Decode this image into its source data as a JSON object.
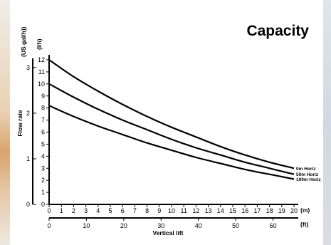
{
  "chart_data": {
    "type": "line",
    "title": "Capacity",
    "xlabel": "Vertical lift",
    "x_unit_primary": "(m)",
    "x_unit_secondary": "(ft)",
    "ylabel": "Flow rate",
    "y_unit_primary": "(l/h)",
    "y_unit_secondary": "(US gal/h))",
    "xlim_m": [
      0,
      20
    ],
    "ylim_lh": [
      0,
      12
    ],
    "x_ticks_m": [
      "0",
      "1",
      "2",
      "3",
      "4",
      "5",
      "6",
      "7",
      "8",
      "9",
      "10",
      "11",
      "12",
      "13",
      "14",
      "15",
      "16",
      "17",
      "18",
      "19",
      "20"
    ],
    "x_ticks_ft": [
      "0",
      "10",
      "20",
      "30",
      "40",
      "50",
      "60"
    ],
    "y_ticks_lh": [
      "0",
      "1",
      "2",
      "3",
      "4",
      "5",
      "6",
      "7",
      "8",
      "9",
      "10",
      "11",
      "12"
    ],
    "y_ticks_gal": [
      "0",
      "1",
      "2",
      "3"
    ],
    "grid": false,
    "series": [
      {
        "name": "0m Horiz",
        "x": [
          0,
          2,
          4,
          6,
          8,
          10,
          12,
          14,
          16,
          18,
          20
        ],
        "y": [
          12.0,
          10.6,
          9.4,
          8.3,
          7.3,
          6.4,
          5.6,
          4.8,
          4.1,
          3.5,
          3.0
        ]
      },
      {
        "name": "50m Horiz",
        "x": [
          0,
          2,
          4,
          6,
          8,
          10,
          12,
          14,
          16,
          18,
          20
        ],
        "y": [
          10.0,
          8.9,
          7.9,
          7.0,
          6.2,
          5.4,
          4.7,
          4.1,
          3.5,
          3.0,
          2.5
        ]
      },
      {
        "name": "100m Horiz",
        "x": [
          0,
          2,
          4,
          6,
          8,
          10,
          12,
          14,
          16,
          18,
          20
        ],
        "y": [
          8.2,
          7.3,
          6.5,
          5.8,
          5.1,
          4.5,
          3.9,
          3.4,
          2.9,
          2.5,
          2.1
        ]
      }
    ]
  }
}
